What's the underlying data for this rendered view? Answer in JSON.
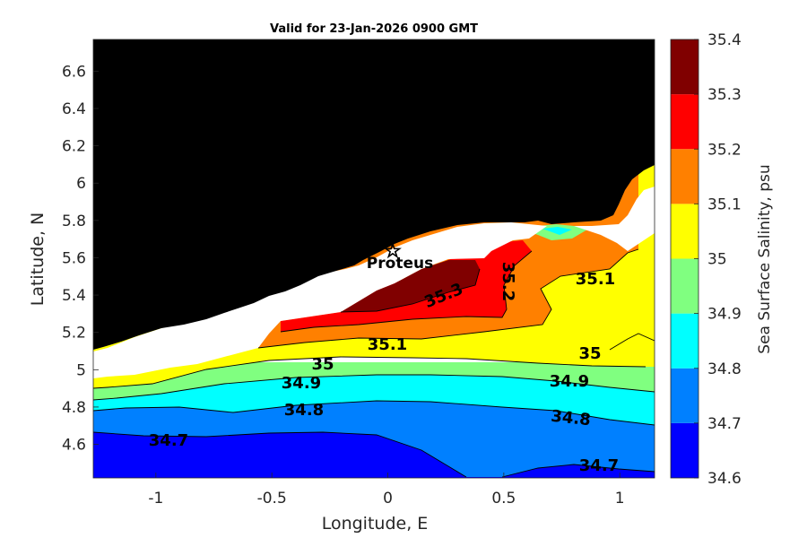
{
  "title": "Valid for 23-Jan-2026 0900 GMT",
  "xlabel": "Longitude, E",
  "ylabel": "Latitude, N",
  "x_ticks": [
    "-1",
    "-0.5",
    "0",
    "0.5",
    "1"
  ],
  "y_ticks": [
    "4.6",
    "4.8",
    "5",
    "5.2",
    "5.4",
    "5.6",
    "5.8",
    "6",
    "6.2",
    "6.4",
    "6.6"
  ],
  "colorbar": {
    "label": "Sea Surface Salinity, psu",
    "ticks": [
      "34.6",
      "34.7",
      "34.8",
      "34.9",
      "35",
      "35.1",
      "35.2",
      "35.3",
      "35.4"
    ],
    "colors": [
      "#0000ff",
      "#0080ff",
      "#00ffff",
      "#80ff80",
      "#ffff00",
      "#ff8000",
      "#ff0000",
      "#800000"
    ]
  },
  "station": {
    "name": "Proteus",
    "lon": 0.02,
    "lat": 5.63
  },
  "contour_labels": {
    "c353": "35.3",
    "c352": "35.2",
    "c351a": "35.1",
    "c351b": "35.1",
    "c35a": "35",
    "c35b": "35",
    "c349a": "34.9",
    "c349b": "34.9",
    "c348a": "34.8",
    "c348b": "34.8",
    "c347a": "34.7",
    "c347b": "34.7"
  },
  "chart_data": {
    "type": "heatmap",
    "title": "Valid for 23-Jan-2026 0900 GMT",
    "xlabel": "Longitude, E",
    "ylabel": "Latitude, N",
    "xlim": [
      -1.27,
      1.15
    ],
    "ylim": [
      4.42,
      6.77
    ],
    "color_scale": {
      "label": "Sea Surface Salinity, psu",
      "min": 34.6,
      "max": 35.4,
      "step": 0.1
    },
    "contour_levels": [
      34.7,
      34.8,
      34.9,
      35.0,
      35.1,
      35.2,
      35.3
    ],
    "land_color": "#000000",
    "no_data_color": "#ffffff",
    "station": {
      "name": "Proteus",
      "lon": 0.02,
      "lat": 5.63
    }
  }
}
